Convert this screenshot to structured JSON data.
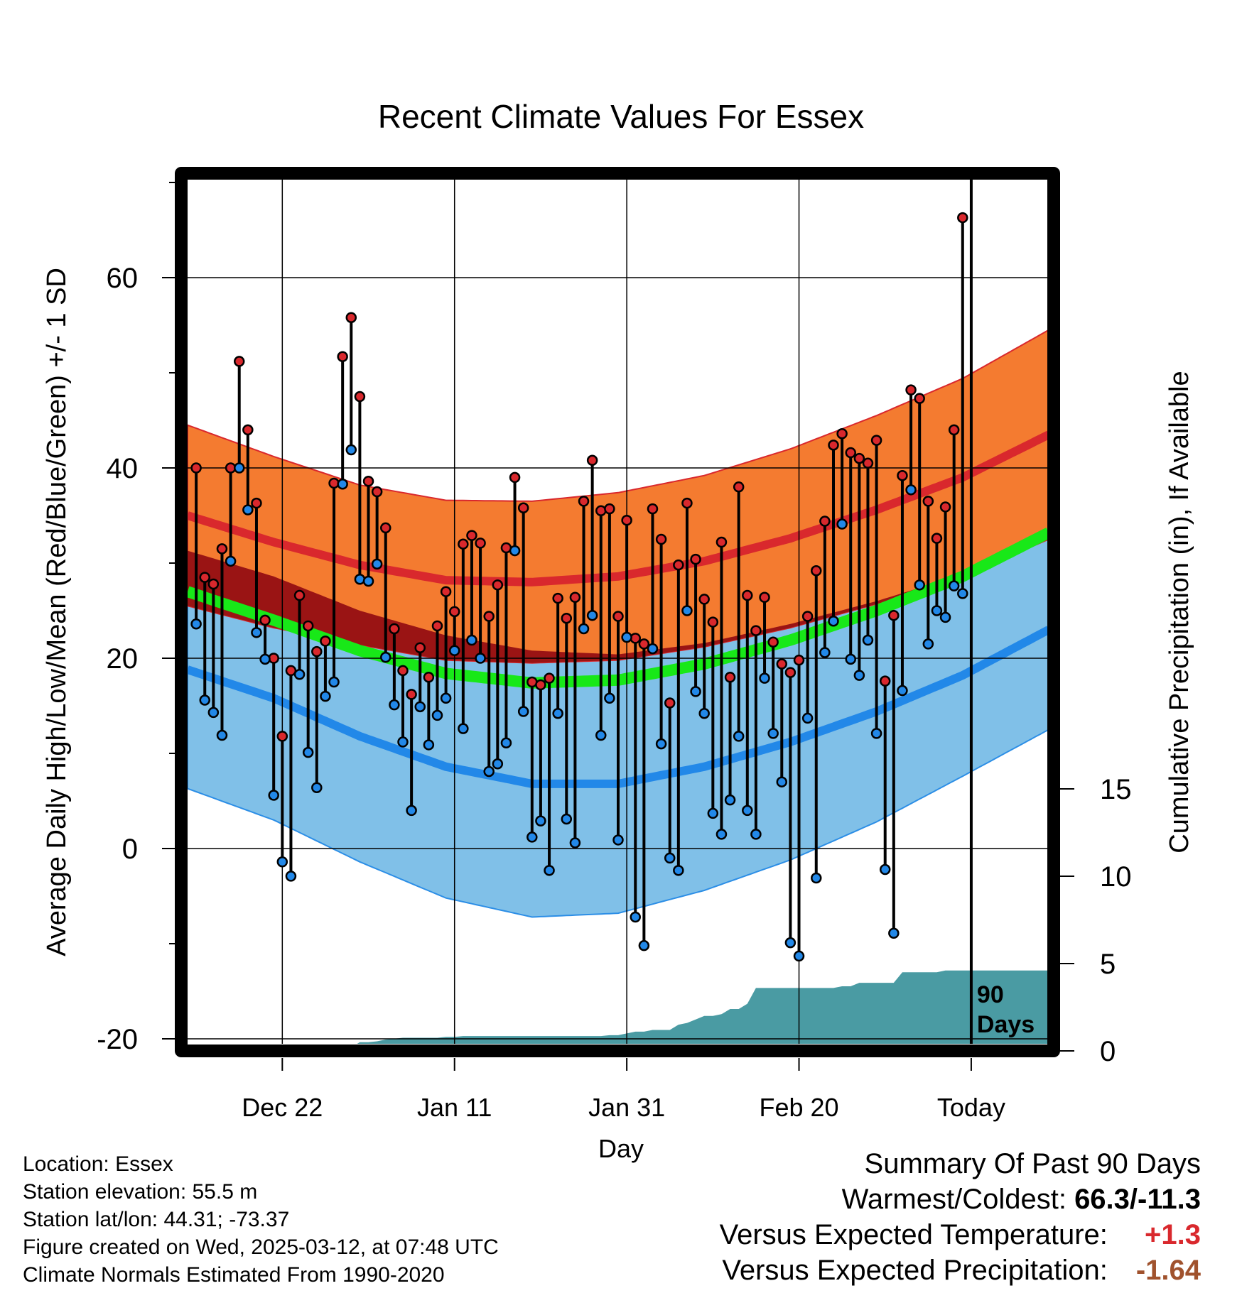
{
  "chart_data": {
    "type": "line",
    "title": "Recent Climate Values For Essex",
    "xlabel": "Day",
    "ylabel_left": "Average Daily High/Low/Mean (Red/Blue/Green) +/- 1 SD",
    "ylabel_right": "Cumulative Precipitation (in), If Available",
    "ylim_left": [
      -20,
      70
    ],
    "ylim_right": [
      0,
      20
    ],
    "yticks_left": [
      "60",
      "40",
      "20",
      "0",
      "-20"
    ],
    "yticks_right": [
      "15",
      "10",
      "5",
      "0"
    ],
    "x_ticks": [
      "Dec 22",
      "Jan 11",
      "Jan 31",
      "Feb 20",
      "Today"
    ],
    "x_tick_day_index": [
      10,
      30,
      50,
      70,
      90
    ],
    "xlim_day_index": [
      -1,
      99
    ],
    "grid": true,
    "today_marker": "90 Days",
    "normals": {
      "day_index": [
        -1,
        9,
        19,
        29,
        39,
        49,
        59,
        69,
        79,
        89,
        99
      ],
      "high_mean": [
        35.0,
        32.2,
        29.8,
        28.2,
        28.0,
        28.6,
        30.2,
        32.6,
        35.6,
        39.0,
        43.5
      ],
      "high_sd": [
        9.5,
        9.0,
        8.4,
        8.4,
        8.5,
        8.8,
        9.0,
        9.4,
        9.9,
        10.4,
        11.0
      ],
      "low_mean": [
        18.8,
        15.8,
        11.8,
        8.6,
        6.8,
        6.8,
        8.6,
        11.2,
        14.4,
        18.2,
        23.0
      ],
      "low_sd": [
        12.5,
        12.8,
        13.2,
        13.8,
        14.0,
        13.6,
        13.0,
        12.4,
        11.6,
        10.6,
        10.5
      ],
      "avg_mean": [
        27.0,
        24.0,
        20.8,
        18.4,
        17.4,
        17.7,
        19.4,
        21.9,
        25.0,
        28.6,
        33.2
      ]
    },
    "series": [
      {
        "name": "High",
        "values": [
          40.0,
          28.5,
          27.8,
          31.5,
          40.0,
          51.2,
          44.0,
          36.3,
          24.0,
          20.0,
          11.8,
          18.7,
          26.6,
          23.4,
          20.7,
          21.8,
          38.4,
          51.7,
          55.8,
          47.5,
          38.6,
          37.5,
          33.7,
          23.1,
          18.7,
          16.2,
          21.1,
          18.0,
          23.4,
          27.0,
          24.9,
          32.0,
          32.9,
          32.1,
          24.4,
          27.7,
          31.6,
          39.0,
          35.8,
          17.5,
          17.2,
          17.9,
          26.3,
          24.2,
          26.4,
          36.5,
          40.8,
          35.5,
          35.7,
          24.4,
          34.5,
          22.1,
          21.5,
          35.7,
          32.5,
          15.3,
          29.8,
          36.3,
          30.4,
          26.2,
          23.8,
          32.2,
          18.0,
          38.0,
          26.6,
          22.9,
          26.4,
          21.7,
          19.4,
          18.5,
          19.8,
          24.4,
          29.2,
          34.4,
          42.4,
          43.6,
          41.6,
          41.0,
          40.5,
          42.9,
          17.6,
          24.5,
          39.2,
          48.2,
          47.3,
          36.5,
          32.6,
          35.9,
          44.0,
          66.3
        ]
      },
      {
        "name": "Low",
        "values": [
          23.6,
          15.6,
          14.3,
          11.9,
          30.2,
          40.0,
          35.6,
          22.7,
          19.9,
          5.6,
          -1.4,
          -2.9,
          18.3,
          10.1,
          6.4,
          16.0,
          17.5,
          38.3,
          41.9,
          28.3,
          28.1,
          29.9,
          20.1,
          15.1,
          11.2,
          4.0,
          14.9,
          10.9,
          14.0,
          15.8,
          20.8,
          12.6,
          21.9,
          20.0,
          8.1,
          8.9,
          11.1,
          31.3,
          14.4,
          1.2,
          2.9,
          -2.3,
          14.2,
          3.1,
          0.6,
          23.1,
          24.5,
          11.9,
          15.8,
          0.9,
          22.2,
          -7.2,
          -10.2,
          21.0,
          11.0,
          -1.0,
          -2.3,
          25.0,
          16.5,
          14.2,
          3.7,
          1.5,
          5.1,
          11.8,
          4.0,
          1.5,
          17.9,
          12.1,
          7.0,
          -9.9,
          -11.3,
          13.7,
          -3.1,
          20.6,
          23.9,
          34.1,
          19.9,
          18.2,
          21.9,
          12.1,
          -2.2,
          -8.9,
          16.6,
          37.7,
          27.7,
          21.5,
          25.0,
          24.3,
          27.6,
          26.8
        ]
      },
      {
        "name": "Cumulative Precipitation",
        "values": [
          0.0,
          0.0,
          0.0,
          0.0,
          0.0,
          0.0,
          0.0,
          0.0,
          0.0,
          0.0,
          0.0,
          0.0,
          0.0,
          0.0,
          0.0,
          0.0,
          0.0,
          0.1,
          0.2,
          0.5,
          0.5,
          0.55,
          0.65,
          0.7,
          0.75,
          0.75,
          0.75,
          0.75,
          0.75,
          0.8,
          0.8,
          0.85,
          0.85,
          0.85,
          0.85,
          0.85,
          0.85,
          0.85,
          0.85,
          0.85,
          0.85,
          0.85,
          0.85,
          0.85,
          0.85,
          0.85,
          0.85,
          0.85,
          0.9,
          0.9,
          1.0,
          1.1,
          1.1,
          1.2,
          1.2,
          1.2,
          1.5,
          1.6,
          1.8,
          2.0,
          2.0,
          2.1,
          2.4,
          2.4,
          2.7,
          3.6,
          3.6,
          3.6,
          3.6,
          3.6,
          3.6,
          3.6,
          3.6,
          3.6,
          3.6,
          3.7,
          3.7,
          3.9,
          3.9,
          3.9,
          3.9,
          3.9,
          4.5,
          4.5,
          4.5,
          4.5,
          4.5,
          4.6,
          4.6,
          4.6,
          4.6
        ]
      }
    ],
    "colors": {
      "high_band": "#f47b30",
      "high_mean": "#d9282d",
      "low_band": "#80c0e8",
      "low_mean": "#2288e8",
      "overlap_band": "#9a1414",
      "avg_mean": "#18e818",
      "precip": "#4a9ba3",
      "high_dot": "#d9282d",
      "low_dot": "#2288e8"
    }
  },
  "footer": {
    "location": "Location: Essex",
    "elevation": "Station elevation: 55.5 m",
    "latlon": "Station lat/lon: 44.31; -73.37",
    "created": "Figure created on Wed, 2025-03-12, at 07:48 UTC",
    "normals": "Climate Normals Estimated From 1990-2020"
  },
  "summary": {
    "heading": "Summary Of Past 90 Days",
    "warmest_label": "Warmest/Coldest:",
    "warmest_value": "66.3/-11.3",
    "temp_label": "Versus Expected Temperature:",
    "temp_value": "+1.3",
    "temp_color": "#d9282d",
    "precip_label": "Versus Expected Precipitation:",
    "precip_value": "-1.64",
    "precip_color": "#a0522d"
  }
}
